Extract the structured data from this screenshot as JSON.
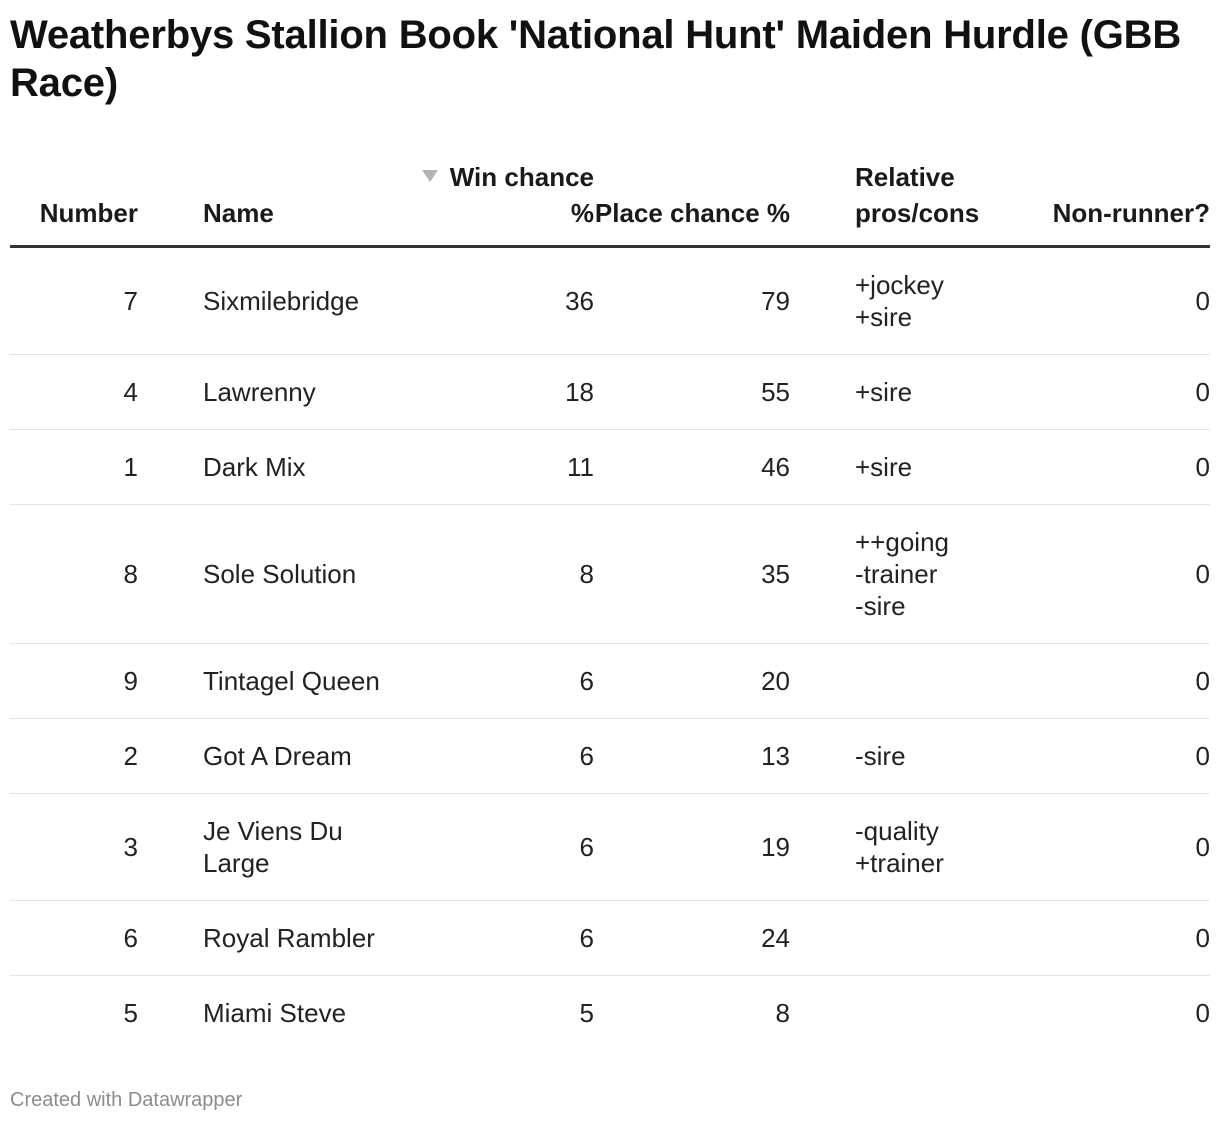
{
  "title": "Weatherbys Stallion Book 'National Hunt' Maiden Hurdle (GBB Race)",
  "columns": {
    "number": "Number",
    "name": "Name",
    "win": "Win chance %",
    "place": "Place chance %",
    "relative": "Relative pros/cons",
    "nonrunner": "Non-runner?"
  },
  "sort": {
    "column": "win",
    "direction": "descending",
    "icon": "sort-down-triangle-icon",
    "color": "#b4b4b4"
  },
  "rows": [
    {
      "number": "7",
      "name": "Sixmilebridge",
      "win": "36",
      "place": "79",
      "relative": "+jockey\n+sire",
      "nonrunner": "0"
    },
    {
      "number": "4",
      "name": "Lawrenny",
      "win": "18",
      "place": "55",
      "relative": "+sire",
      "nonrunner": "0"
    },
    {
      "number": "1",
      "name": "Dark Mix",
      "win": "11",
      "place": "46",
      "relative": "+sire",
      "nonrunner": "0"
    },
    {
      "number": "8",
      "name": "Sole Solution",
      "win": "8",
      "place": "35",
      "relative": "++going\n-trainer\n-sire",
      "nonrunner": "0"
    },
    {
      "number": "9",
      "name": "Tintagel Queen",
      "win": "6",
      "place": "20",
      "relative": "",
      "nonrunner": "0"
    },
    {
      "number": "2",
      "name": "Got A Dream",
      "win": "6",
      "place": "13",
      "relative": "-sire",
      "nonrunner": "0"
    },
    {
      "number": "3",
      "name": "Je Viens Du Large",
      "win": "6",
      "place": "19",
      "relative": "-quality\n+trainer",
      "nonrunner": "0"
    },
    {
      "number": "6",
      "name": "Royal Rambler",
      "win": "6",
      "place": "24",
      "relative": "",
      "nonrunner": "0"
    },
    {
      "number": "5",
      "name": "Miami Steve",
      "win": "5",
      "place": "8",
      "relative": "",
      "nonrunner": "0"
    }
  ],
  "footer": "Created with Datawrapper"
}
